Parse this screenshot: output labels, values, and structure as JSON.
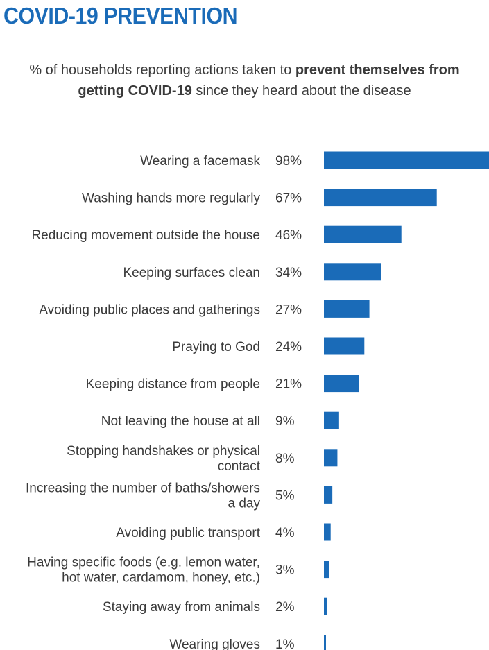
{
  "header": {
    "title": "COVID-19 PREVENTION",
    "subtitle_line1_prefix": "% of households reporting actions taken to ",
    "subtitle_line1_bold": "prevent themselves from",
    "subtitle_line2_bold": "getting COVID-19",
    "subtitle_line2_suffix": " since they heard about the disease"
  },
  "colors": {
    "bar": "#1a6bb8",
    "title": "#1a6bb8",
    "text": "#3a3a3a"
  },
  "chart_data": {
    "type": "bar",
    "orientation": "horizontal",
    "title": "COVID-19 PREVENTION",
    "xlabel": "",
    "ylabel": "",
    "xlim": [
      0,
      98
    ],
    "grid": false,
    "legend": "none",
    "categories": [
      [
        "Wearing a facemask"
      ],
      [
        "Washing hands more regularly"
      ],
      [
        "Reducing movement outside the house"
      ],
      [
        "Keeping surfaces clean"
      ],
      [
        "Avoiding public places and gatherings"
      ],
      [
        "Praying to God"
      ],
      [
        "Keeping distance from people"
      ],
      [
        "Not leaving the house at all"
      ],
      [
        "Stopping handshakes or physical",
        "contact"
      ],
      [
        "Increasing the number of baths/showers",
        "a day"
      ],
      [
        "Avoiding public transport"
      ],
      [
        "Having specific foods (e.g. lemon water,",
        "hot water, cardamom, honey, etc.)"
      ],
      [
        "Staying away from animals"
      ],
      [
        "Wearing gloves"
      ]
    ],
    "values": [
      98,
      67,
      46,
      34,
      27,
      24,
      21,
      9,
      8,
      5,
      4,
      3,
      2,
      1
    ],
    "value_labels": [
      "98%",
      "67%",
      "46%",
      "34%",
      "27%",
      "24%",
      "21%",
      "9%",
      "8%",
      "5%",
      "4%",
      "3%",
      "2%",
      "1%"
    ]
  }
}
